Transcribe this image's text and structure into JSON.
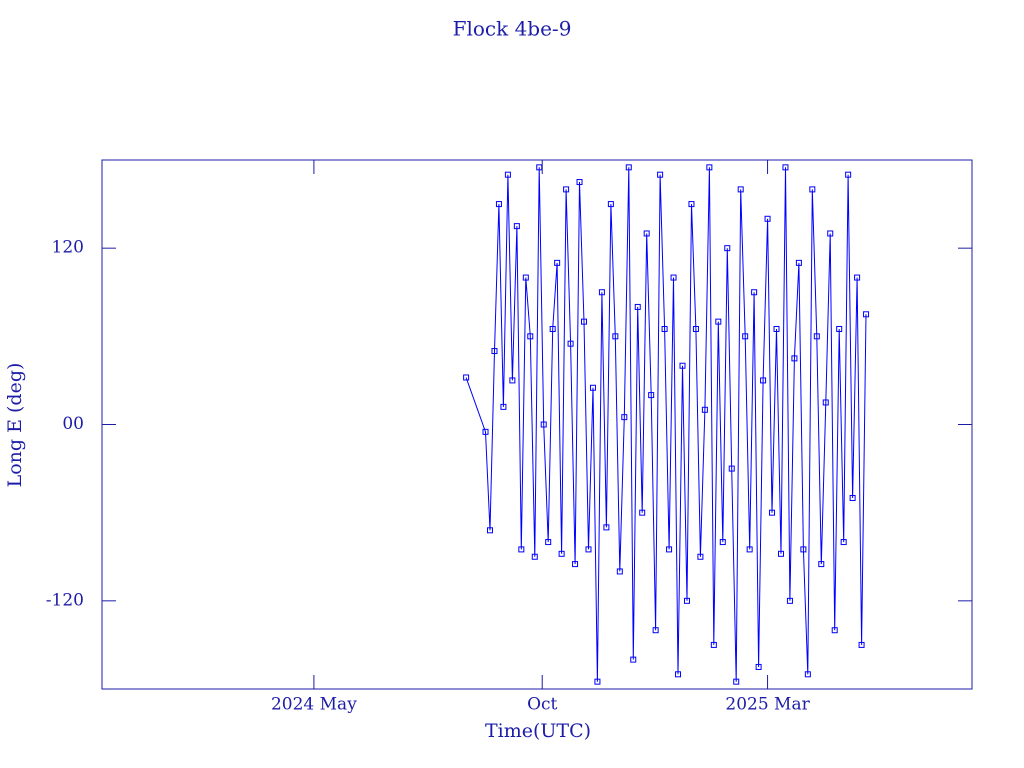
{
  "chart_data": {
    "type": "line",
    "title": "Flock 4be-9",
    "xlabel": "Time(UTC)",
    "ylabel": "Long E (deg)",
    "color": "#0000ff",
    "marker": "square",
    "x": [
      223,
      236,
      239,
      242,
      245,
      248,
      251,
      254,
      257,
      260,
      263,
      266,
      269,
      272,
      275,
      278,
      281,
      284,
      287,
      290,
      293,
      296,
      299,
      302,
      305,
      308,
      311,
      314,
      317,
      320,
      323,
      326,
      329,
      332,
      335,
      338,
      341,
      344,
      347,
      350,
      353,
      356,
      359,
      362,
      365,
      368,
      371,
      374,
      377,
      380,
      383,
      386,
      389,
      392,
      395,
      398,
      401,
      404,
      407,
      410,
      413,
      416,
      419,
      422,
      425,
      428,
      431,
      434,
      437,
      440,
      443,
      446,
      449,
      452,
      455,
      458,
      461,
      464,
      467,
      470,
      473,
      476,
      479,
      482,
      485,
      488,
      491
    ],
    "values": [
      32,
      -5,
      -72,
      50,
      150,
      12,
      170,
      30,
      135,
      -85,
      100,
      60,
      -90,
      175,
      0,
      -80,
      65,
      110,
      -88,
      160,
      55,
      -95,
      165,
      70,
      -85,
      25,
      -175,
      90,
      -70,
      150,
      60,
      -100,
      5,
      175,
      -160,
      80,
      -60,
      130,
      20,
      -140,
      170,
      65,
      -85,
      100,
      -170,
      40,
      -120,
      150,
      65,
      -90,
      10,
      175,
      -150,
      70,
      -80,
      120,
      -30,
      -175,
      160,
      60,
      -85,
      90,
      -165,
      30,
      140,
      -60,
      65,
      -88,
      175,
      -120,
      45,
      110,
      -85,
      -170,
      160,
      60,
      -95,
      15,
      130,
      -140,
      65,
      -80,
      170,
      -50,
      100,
      -150,
      75
    ],
    "xlim": [
      -21,
      562
    ],
    "xticks": [
      {
        "value": 121,
        "label": "2024 May"
      },
      {
        "value": 274,
        "label": "Oct"
      },
      {
        "value": 425,
        "label": "2025 Mar"
      }
    ],
    "ylim": [
      -180,
      180
    ],
    "yticks": [
      -120,
      {
        "value": 0,
        "label": "00"
      },
      120
    ]
  }
}
